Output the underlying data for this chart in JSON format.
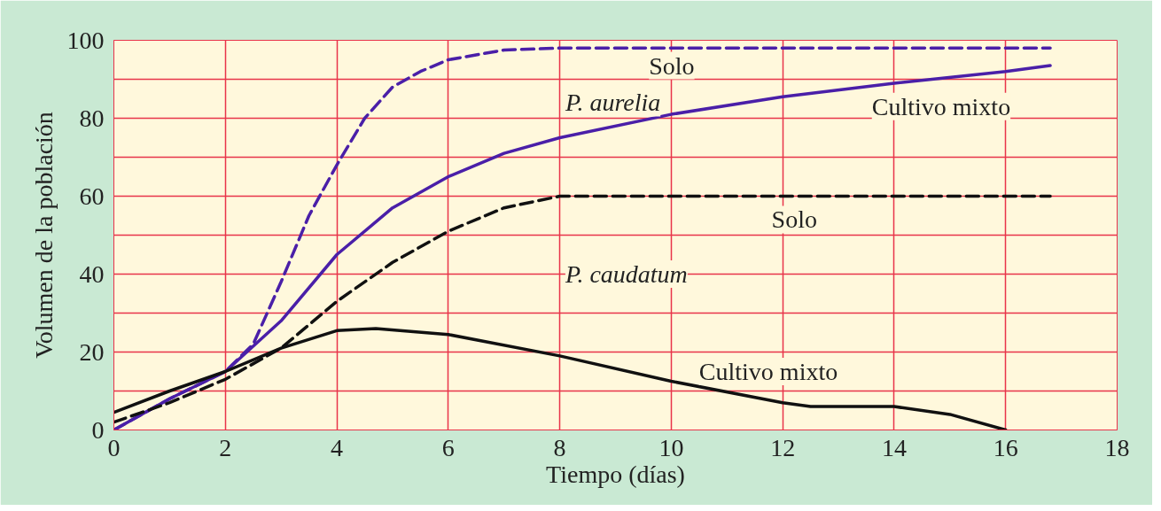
{
  "chart_data": {
    "type": "line",
    "xlabel": "Tiempo (días)",
    "ylabel": "Volumen de la población",
    "xlim": [
      0,
      18
    ],
    "xticks": [
      0,
      2,
      4,
      6,
      8,
      10,
      12,
      14,
      16,
      18
    ],
    "ylim": [
      0,
      100
    ],
    "yticks": [
      0,
      {
        "value": 10,
        "label": null
      },
      20,
      {
        "value": 30,
        "label": null
      },
      40,
      {
        "value": 50,
        "label": null
      },
      60,
      {
        "value": 70,
        "label": null
      },
      80,
      {
        "value": 90,
        "label": null
      },
      100
    ],
    "grid": true,
    "marker": "none",
    "series": [
      {
        "color": "#4a1fa8",
        "line_style": "dashed",
        "x": [
          0,
          1,
          2,
          2.5,
          3,
          3.5,
          4,
          4.5,
          5,
          5.5,
          6,
          7,
          8,
          10,
          12,
          14,
          16,
          16.8
        ],
        "values": [
          0,
          8,
          15,
          22,
          38,
          55,
          68,
          80,
          88,
          92,
          95,
          97.5,
          98,
          98,
          98,
          98,
          98,
          98
        ]
      },
      {
        "color": "#4a1fa8",
        "line_style": "solid",
        "x": [
          0,
          1,
          2,
          3,
          4,
          5,
          6,
          7,
          8,
          10,
          12,
          14,
          16,
          16.8
        ],
        "values": [
          0,
          8,
          15,
          28,
          45,
          57,
          65,
          71,
          75,
          81,
          85.5,
          89,
          92,
          93.5
        ]
      },
      {
        "color": "#111111",
        "line_style": "dashed",
        "x": [
          0,
          1,
          2,
          3,
          4,
          5,
          6,
          7,
          8,
          10,
          12,
          14,
          16,
          16.8
        ],
        "values": [
          2,
          7,
          13,
          21,
          33,
          43,
          51,
          57,
          60,
          60,
          60,
          60,
          60,
          60
        ]
      },
      {
        "color": "#111111",
        "line_style": "solid",
        "x": [
          0,
          1,
          2,
          3,
          4,
          4.7,
          6,
          8,
          10,
          12,
          12.5,
          14,
          15,
          16
        ],
        "values": [
          4.5,
          10,
          15,
          21,
          25.5,
          26,
          24.5,
          19,
          12.5,
          7,
          6,
          6,
          4,
          0
        ]
      }
    ],
    "annotations": [
      "Solo",
      "P. aurelia",
      "Cultivo mixto",
      "Solo",
      "P. caudatum",
      "Cultivo mixto"
    ]
  }
}
